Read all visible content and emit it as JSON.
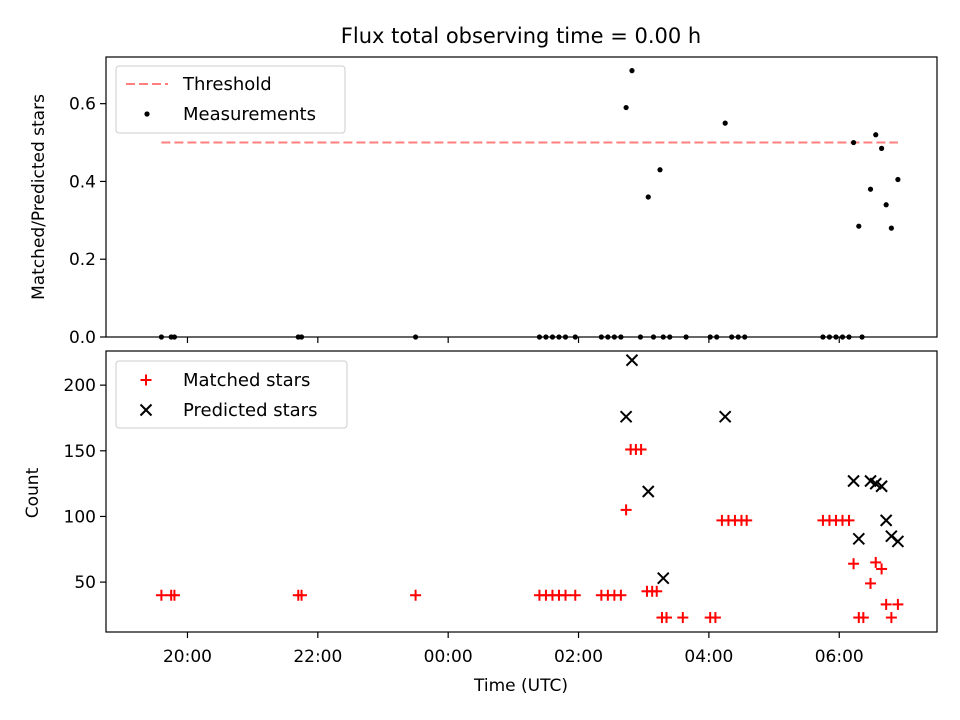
{
  "chart_data": [
    {
      "type": "scatter",
      "title": "Flux total observing time = 0.00 h",
      "xlabel": "",
      "ylabel": "Matched/Predicted stars",
      "ylim": [
        0,
        0.72
      ],
      "yticks": [
        0.0,
        0.2,
        0.4,
        0.6
      ],
      "ytick_labels": [
        "0.0",
        "0.2",
        "0.4",
        "0.6"
      ],
      "legend_position": "top-left",
      "threshold": {
        "name": "Threshold",
        "value": 0.5,
        "x_start": 19.6,
        "x_end": 6.9,
        "color": "#ff7f7f"
      },
      "series": [
        {
          "name": "Measurements",
          "marker": "dot",
          "color": "#000000",
          "points": [
            [
              19.6,
              0
            ],
            [
              19.75,
              0
            ],
            [
              19.8,
              0
            ],
            [
              21.7,
              0
            ],
            [
              21.75,
              0
            ],
            [
              23.5,
              0
            ],
            [
              1.4,
              0
            ],
            [
              1.5,
              0
            ],
            [
              1.6,
              0
            ],
            [
              1.7,
              0
            ],
            [
              1.8,
              0
            ],
            [
              1.95,
              0
            ],
            [
              2.35,
              0
            ],
            [
              2.45,
              0
            ],
            [
              2.55,
              0
            ],
            [
              2.65,
              0
            ],
            [
              2.73,
              0.59
            ],
            [
              2.82,
              0.685
            ],
            [
              2.95,
              0
            ],
            [
              3.07,
              0.36
            ],
            [
              3.15,
              0
            ],
            [
              3.25,
              0.43
            ],
            [
              3.3,
              0
            ],
            [
              3.4,
              0
            ],
            [
              3.65,
              0
            ],
            [
              4.02,
              0
            ],
            [
              4.12,
              0
            ],
            [
              4.25,
              0.55
            ],
            [
              4.35,
              0
            ],
            [
              4.45,
              0
            ],
            [
              4.55,
              0
            ],
            [
              5.75,
              0
            ],
            [
              5.85,
              0
            ],
            [
              5.95,
              0
            ],
            [
              6.05,
              0
            ],
            [
              6.15,
              0
            ],
            [
              6.22,
              0.5
            ],
            [
              6.3,
              0.285
            ],
            [
              6.35,
              0
            ],
            [
              6.48,
              0.38
            ],
            [
              6.56,
              0.52
            ],
            [
              6.65,
              0.485
            ],
            [
              6.72,
              0.34
            ],
            [
              6.8,
              0.28
            ],
            [
              6.9,
              0.405
            ]
          ]
        }
      ]
    },
    {
      "type": "scatter",
      "xlabel": "Time (UTC)",
      "ylabel": "Count",
      "ylim": [
        12,
        226
      ],
      "yticks": [
        50,
        100,
        150,
        200
      ],
      "ytick_labels": [
        "50",
        "100",
        "150",
        "200"
      ],
      "xlim": [
        18.75,
        7.5
      ],
      "xticks": [
        20,
        22,
        0,
        2,
        4,
        6
      ],
      "xtick_labels": [
        "20:00",
        "22:00",
        "00:00",
        "02:00",
        "04:00",
        "06:00"
      ],
      "legend_position": "top-left",
      "series": [
        {
          "name": "Matched stars",
          "marker": "plus",
          "color": "#ff0000",
          "points": [
            [
              19.6,
              40
            ],
            [
              19.75,
              40
            ],
            [
              19.8,
              40
            ],
            [
              21.7,
              40
            ],
            [
              21.75,
              40
            ],
            [
              23.5,
              40
            ],
            [
              1.4,
              40
            ],
            [
              1.5,
              40
            ],
            [
              1.6,
              40
            ],
            [
              1.7,
              40
            ],
            [
              1.8,
              40
            ],
            [
              1.95,
              40
            ],
            [
              2.35,
              40
            ],
            [
              2.45,
              40
            ],
            [
              2.55,
              40
            ],
            [
              2.65,
              40
            ],
            [
              2.73,
              105
            ],
            [
              2.8,
              151
            ],
            [
              2.88,
              151
            ],
            [
              2.96,
              151
            ],
            [
              3.05,
              43
            ],
            [
              3.13,
              43
            ],
            [
              3.2,
              43
            ],
            [
              3.28,
              23
            ],
            [
              3.35,
              23
            ],
            [
              3.6,
              23
            ],
            [
              4.02,
              23
            ],
            [
              4.1,
              23
            ],
            [
              4.2,
              97
            ],
            [
              4.3,
              97
            ],
            [
              4.4,
              97
            ],
            [
              4.5,
              97
            ],
            [
              4.58,
              97
            ],
            [
              5.75,
              97
            ],
            [
              5.85,
              97
            ],
            [
              5.95,
              97
            ],
            [
              6.05,
              97
            ],
            [
              6.15,
              97
            ],
            [
              6.22,
              64
            ],
            [
              6.3,
              23
            ],
            [
              6.37,
              23
            ],
            [
              6.48,
              49
            ],
            [
              6.56,
              65
            ],
            [
              6.65,
              60
            ],
            [
              6.72,
              33
            ],
            [
              6.8,
              23
            ],
            [
              6.9,
              33
            ]
          ]
        },
        {
          "name": "Predicted stars",
          "marker": "x",
          "color": "#000000",
          "points": [
            [
              2.73,
              176
            ],
            [
              2.82,
              219
            ],
            [
              3.07,
              119
            ],
            [
              3.3,
              53
            ],
            [
              4.25,
              176
            ],
            [
              6.22,
              127
            ],
            [
              6.3,
              83
            ],
            [
              6.48,
              127
            ],
            [
              6.56,
              125
            ],
            [
              6.65,
              123
            ],
            [
              6.72,
              97
            ],
            [
              6.8,
              85
            ],
            [
              6.9,
              81
            ]
          ]
        }
      ]
    }
  ]
}
